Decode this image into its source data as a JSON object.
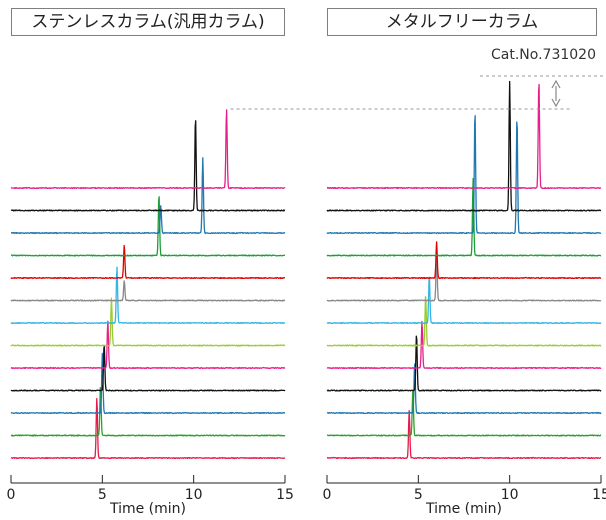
{
  "chart_data": [
    {
      "type": "line",
      "title": "ステンレスカラム(汎用カラム)",
      "xlabel": "Time (min)",
      "xlim": [
        0,
        15
      ],
      "x_ticks": [
        0,
        5,
        10,
        15
      ],
      "traces": [
        {
          "color": "#e6194b",
          "peaks": [
            {
              "t": 4.7,
              "h": 60
            }
          ]
        },
        {
          "color": "#2aa02a",
          "peaks": [
            {
              "t": 4.9,
              "h": 50
            }
          ]
        },
        {
          "color": "#1f77b4",
          "peaks": [
            {
              "t": 5.0,
              "h": 60
            }
          ]
        },
        {
          "color": "#111111",
          "peaks": [
            {
              "t": 5.1,
              "h": 47
            }
          ]
        },
        {
          "color": "#e91e8c",
          "peaks": [
            {
              "t": 5.3,
              "h": 47
            }
          ]
        },
        {
          "color": "#9acd32",
          "peaks": [
            {
              "t": 5.5,
              "h": 47
            }
          ]
        },
        {
          "color": "#33b5e5",
          "peaks": [
            {
              "t": 5.8,
              "h": 57
            }
          ]
        },
        {
          "color": "#888888",
          "peaks": [
            {
              "t": 6.2,
              "h": 20
            }
          ]
        },
        {
          "color": "#e00000",
          "peaks": [
            {
              "t": 6.2,
              "h": 33
            }
          ]
        },
        {
          "color": "#1e9e3a",
          "peaks": [
            {
              "t": 8.1,
              "h": 62
            }
          ]
        },
        {
          "color": "#1f77b4",
          "peaks": [
            {
              "t": 8.2,
              "h": 28
            },
            {
              "t": 10.5,
              "h": 75
            }
          ]
        },
        {
          "color": "#111111",
          "peaks": [
            {
              "t": 10.1,
              "h": 94
            }
          ]
        },
        {
          "color": "#e91e8c",
          "peaks": [
            {
              "t": 11.8,
              "h": 79
            }
          ]
        }
      ]
    },
    {
      "type": "line",
      "title": "メタルフリーカラム",
      "subtitle": "Cat.No.731020",
      "xlabel": "Time (min)",
      "xlim": [
        0,
        15
      ],
      "x_ticks": [
        0,
        5,
        10,
        15
      ],
      "traces": [
        {
          "color": "#e6194b",
          "peaks": [
            {
              "t": 4.5,
              "h": 47
            }
          ]
        },
        {
          "color": "#2aa02a",
          "peaks": [
            {
              "t": 4.7,
              "h": 45
            }
          ]
        },
        {
          "color": "#1f77b4",
          "peaks": [
            {
              "t": 4.8,
              "h": 50
            }
          ]
        },
        {
          "color": "#111111",
          "peaks": [
            {
              "t": 4.9,
              "h": 57
            }
          ]
        },
        {
          "color": "#e91e8c",
          "peaks": [
            {
              "t": 5.2,
              "h": 47
            }
          ]
        },
        {
          "color": "#9acd32",
          "peaks": [
            {
              "t": 5.4,
              "h": 51
            }
          ]
        },
        {
          "color": "#33b5e5",
          "peaks": [
            {
              "t": 5.6,
              "h": 48
            }
          ]
        },
        {
          "color": "#888888",
          "peaks": [
            {
              "t": 6.0,
              "h": 45
            }
          ]
        },
        {
          "color": "#e00000",
          "peaks": [
            {
              "t": 6.0,
              "h": 36
            }
          ]
        },
        {
          "color": "#1e9e3a",
          "peaks": [
            {
              "t": 8.0,
              "h": 77
            }
          ]
        },
        {
          "color": "#1f77b4",
          "peaks": [
            {
              "t": 8.1,
              "h": 123
            },
            {
              "t": 10.4,
              "h": 117
            }
          ]
        },
        {
          "color": "#111111",
          "peaks": [
            {
              "t": 10.0,
              "h": 129
            }
          ]
        },
        {
          "color": "#e91e8c",
          "peaks": [
            {
              "t": 11.6,
              "h": 109
            }
          ]
        }
      ]
    }
  ]
}
